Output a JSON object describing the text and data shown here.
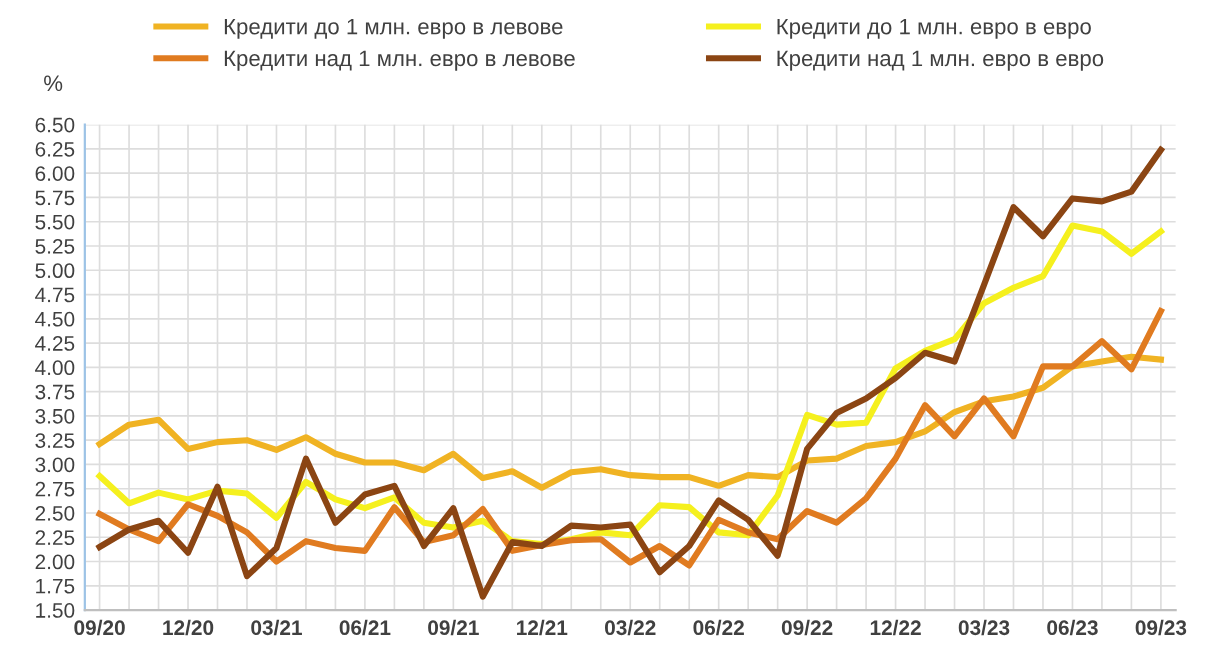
{
  "chart_data": {
    "type": "line",
    "ylabel": "%",
    "categories": [
      "09/20",
      null,
      null,
      "12/20",
      null,
      null,
      "03/21",
      null,
      null,
      "06/21",
      null,
      null,
      "09/21",
      null,
      null,
      "12/21",
      null,
      null,
      "03/22",
      null,
      null,
      "06/22",
      null,
      null,
      "09/22",
      null,
      null,
      "12/22",
      null,
      null,
      "03/23",
      null,
      null,
      "06/23",
      null,
      null,
      "09/23"
    ],
    "series": [
      {
        "name": "Кредити до 1 млн. евро в левове",
        "color": "#f0b323",
        "values": [
          3.21,
          3.41,
          3.46,
          3.16,
          3.23,
          3.25,
          3.15,
          3.28,
          3.11,
          3.02,
          3.02,
          2.94,
          3.11,
          2.86,
          2.93,
          2.76,
          2.92,
          2.95,
          2.89,
          2.87,
          2.87,
          2.78,
          2.89,
          2.87,
          3.04,
          3.06,
          3.19,
          3.23,
          3.34,
          3.54,
          3.65,
          3.7,
          3.79,
          4.01,
          4.06,
          4.11,
          4.08
        ]
      },
      {
        "name": "Кредити до 1 млн. евро в евро",
        "color": "#f5f01e",
        "values": [
          2.88,
          2.6,
          2.71,
          2.64,
          2.73,
          2.7,
          2.45,
          2.82,
          2.64,
          2.55,
          2.66,
          2.4,
          2.35,
          2.42,
          2.21,
          2.18,
          2.23,
          2.3,
          2.27,
          2.58,
          2.56,
          2.3,
          2.27,
          2.68,
          3.51,
          3.41,
          3.43,
          3.99,
          4.17,
          4.29,
          4.66,
          4.82,
          4.94,
          5.46,
          5.4,
          5.17,
          5.4
        ]
      },
      {
        "name": "Кредити над 1 млн. евро в левове",
        "color": "#e07b20",
        "values": [
          2.49,
          2.33,
          2.21,
          2.59,
          2.47,
          2.3,
          2.0,
          2.21,
          2.14,
          2.11,
          2.56,
          2.2,
          2.27,
          2.54,
          2.11,
          2.17,
          2.22,
          2.23,
          1.99,
          2.16,
          1.96,
          2.43,
          2.3,
          2.23,
          2.52,
          2.4,
          2.65,
          3.06,
          3.61,
          3.29,
          3.68,
          3.29,
          4.01,
          4.01,
          4.27,
          3.98,
          4.58
        ]
      },
      {
        "name": "Кредити над 1 млн. евро в евро",
        "color": "#8b4513",
        "values": [
          2.15,
          2.33,
          2.42,
          2.09,
          2.77,
          1.85,
          2.14,
          3.06,
          2.4,
          2.69,
          2.78,
          2.16,
          2.55,
          1.64,
          2.2,
          2.16,
          2.37,
          2.35,
          2.38,
          1.89,
          2.16,
          2.63,
          2.43,
          2.06,
          3.16,
          3.53,
          3.68,
          3.89,
          4.15,
          4.06,
          4.85,
          5.65,
          5.35,
          5.74,
          5.71,
          5.81,
          6.24
        ]
      }
    ],
    "ylim": [
      1.5,
      6.5
    ],
    "yticks": [
      {
        "value": 1.5,
        "label": "1.50"
      },
      {
        "value": 1.75,
        "label": "1.75"
      },
      {
        "value": 2.0,
        "label": "2.00"
      },
      {
        "value": 2.25,
        "label": "2.25"
      },
      {
        "value": 2.5,
        "label": "2.50"
      },
      {
        "value": 2.75,
        "label": "2.75"
      },
      {
        "value": 3.0,
        "label": "3.00"
      },
      {
        "value": 3.25,
        "label": "3.25"
      },
      {
        "value": 3.5,
        "label": "3.50"
      },
      {
        "value": 3.75,
        "label": "3.75"
      },
      {
        "value": 4.0,
        "label": "4.00"
      },
      {
        "value": 4.25,
        "label": "4.25"
      },
      {
        "value": 4.5,
        "label": "4.50"
      },
      {
        "value": 4.75,
        "label": "4.75"
      },
      {
        "value": 5.0,
        "label": "5.00"
      },
      {
        "value": 5.25,
        "label": "5.25"
      },
      {
        "value": 5.5,
        "label": "5.50"
      },
      {
        "value": 5.75,
        "label": "5.75"
      },
      {
        "value": 6.0,
        "label": "6.00"
      },
      {
        "value": 6.25,
        "label": "6.25"
      },
      {
        "value": 6.5,
        "label": "6.50"
      }
    ],
    "grid": true,
    "legend": "top",
    "marker": "none",
    "line_style": "solid"
  }
}
